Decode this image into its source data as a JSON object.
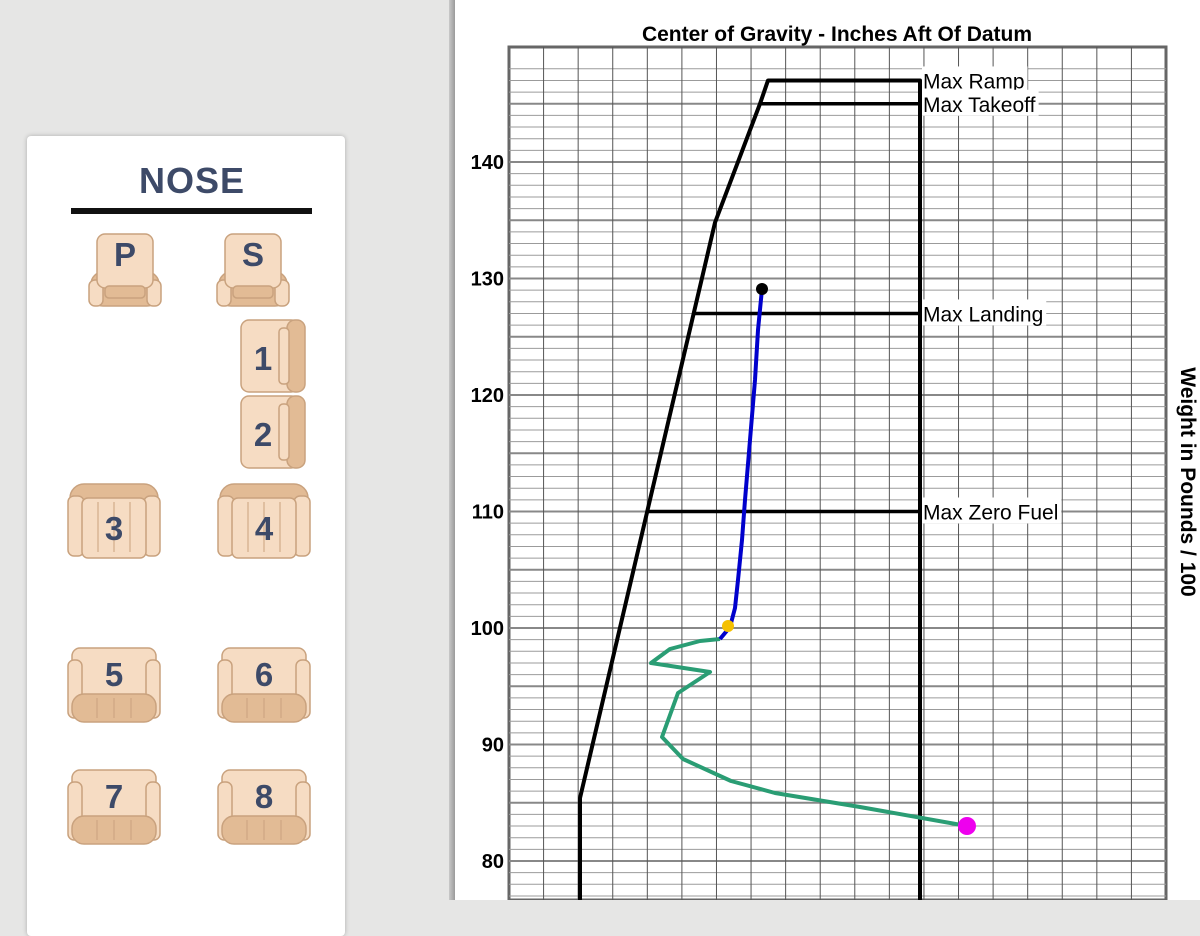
{
  "seat_panel": {
    "nose_label": "NOSE",
    "seats": [
      {
        "id": "P",
        "label": "P"
      },
      {
        "id": "S",
        "label": "S"
      },
      {
        "id": "1",
        "label": "1"
      },
      {
        "id": "2",
        "label": "2"
      },
      {
        "id": "3",
        "label": "3"
      },
      {
        "id": "4",
        "label": "4"
      },
      {
        "id": "5",
        "label": "5"
      },
      {
        "id": "6",
        "label": "6"
      },
      {
        "id": "7",
        "label": "7"
      },
      {
        "id": "8",
        "label": "8"
      }
    ]
  },
  "chart_data": {
    "type": "line",
    "title": "Center of Gravity - Inches Aft Of Datum",
    "ylabel": "Weight in Pounds / 100",
    "ylim": [
      76.6,
      148
    ],
    "y_ticks": [
      80,
      90,
      100,
      110,
      120,
      130,
      140
    ],
    "grid": true,
    "limit_labels": [
      {
        "name": "Max Ramp",
        "weight": 147.0
      },
      {
        "name": "Max Takeoff",
        "weight": 145.0
      },
      {
        "name": "Max Landing",
        "weight": 127.0
      },
      {
        "name": "Max Zero Fuel",
        "weight": 110.0
      }
    ],
    "colors": {
      "envelope": "#000000",
      "fuel_line": "#0000cc",
      "loading_line": "#2a9d74",
      "start_point": "#ee00ee",
      "zero_fuel_point": "#f5c000",
      "end_point": "#000000"
    }
  }
}
